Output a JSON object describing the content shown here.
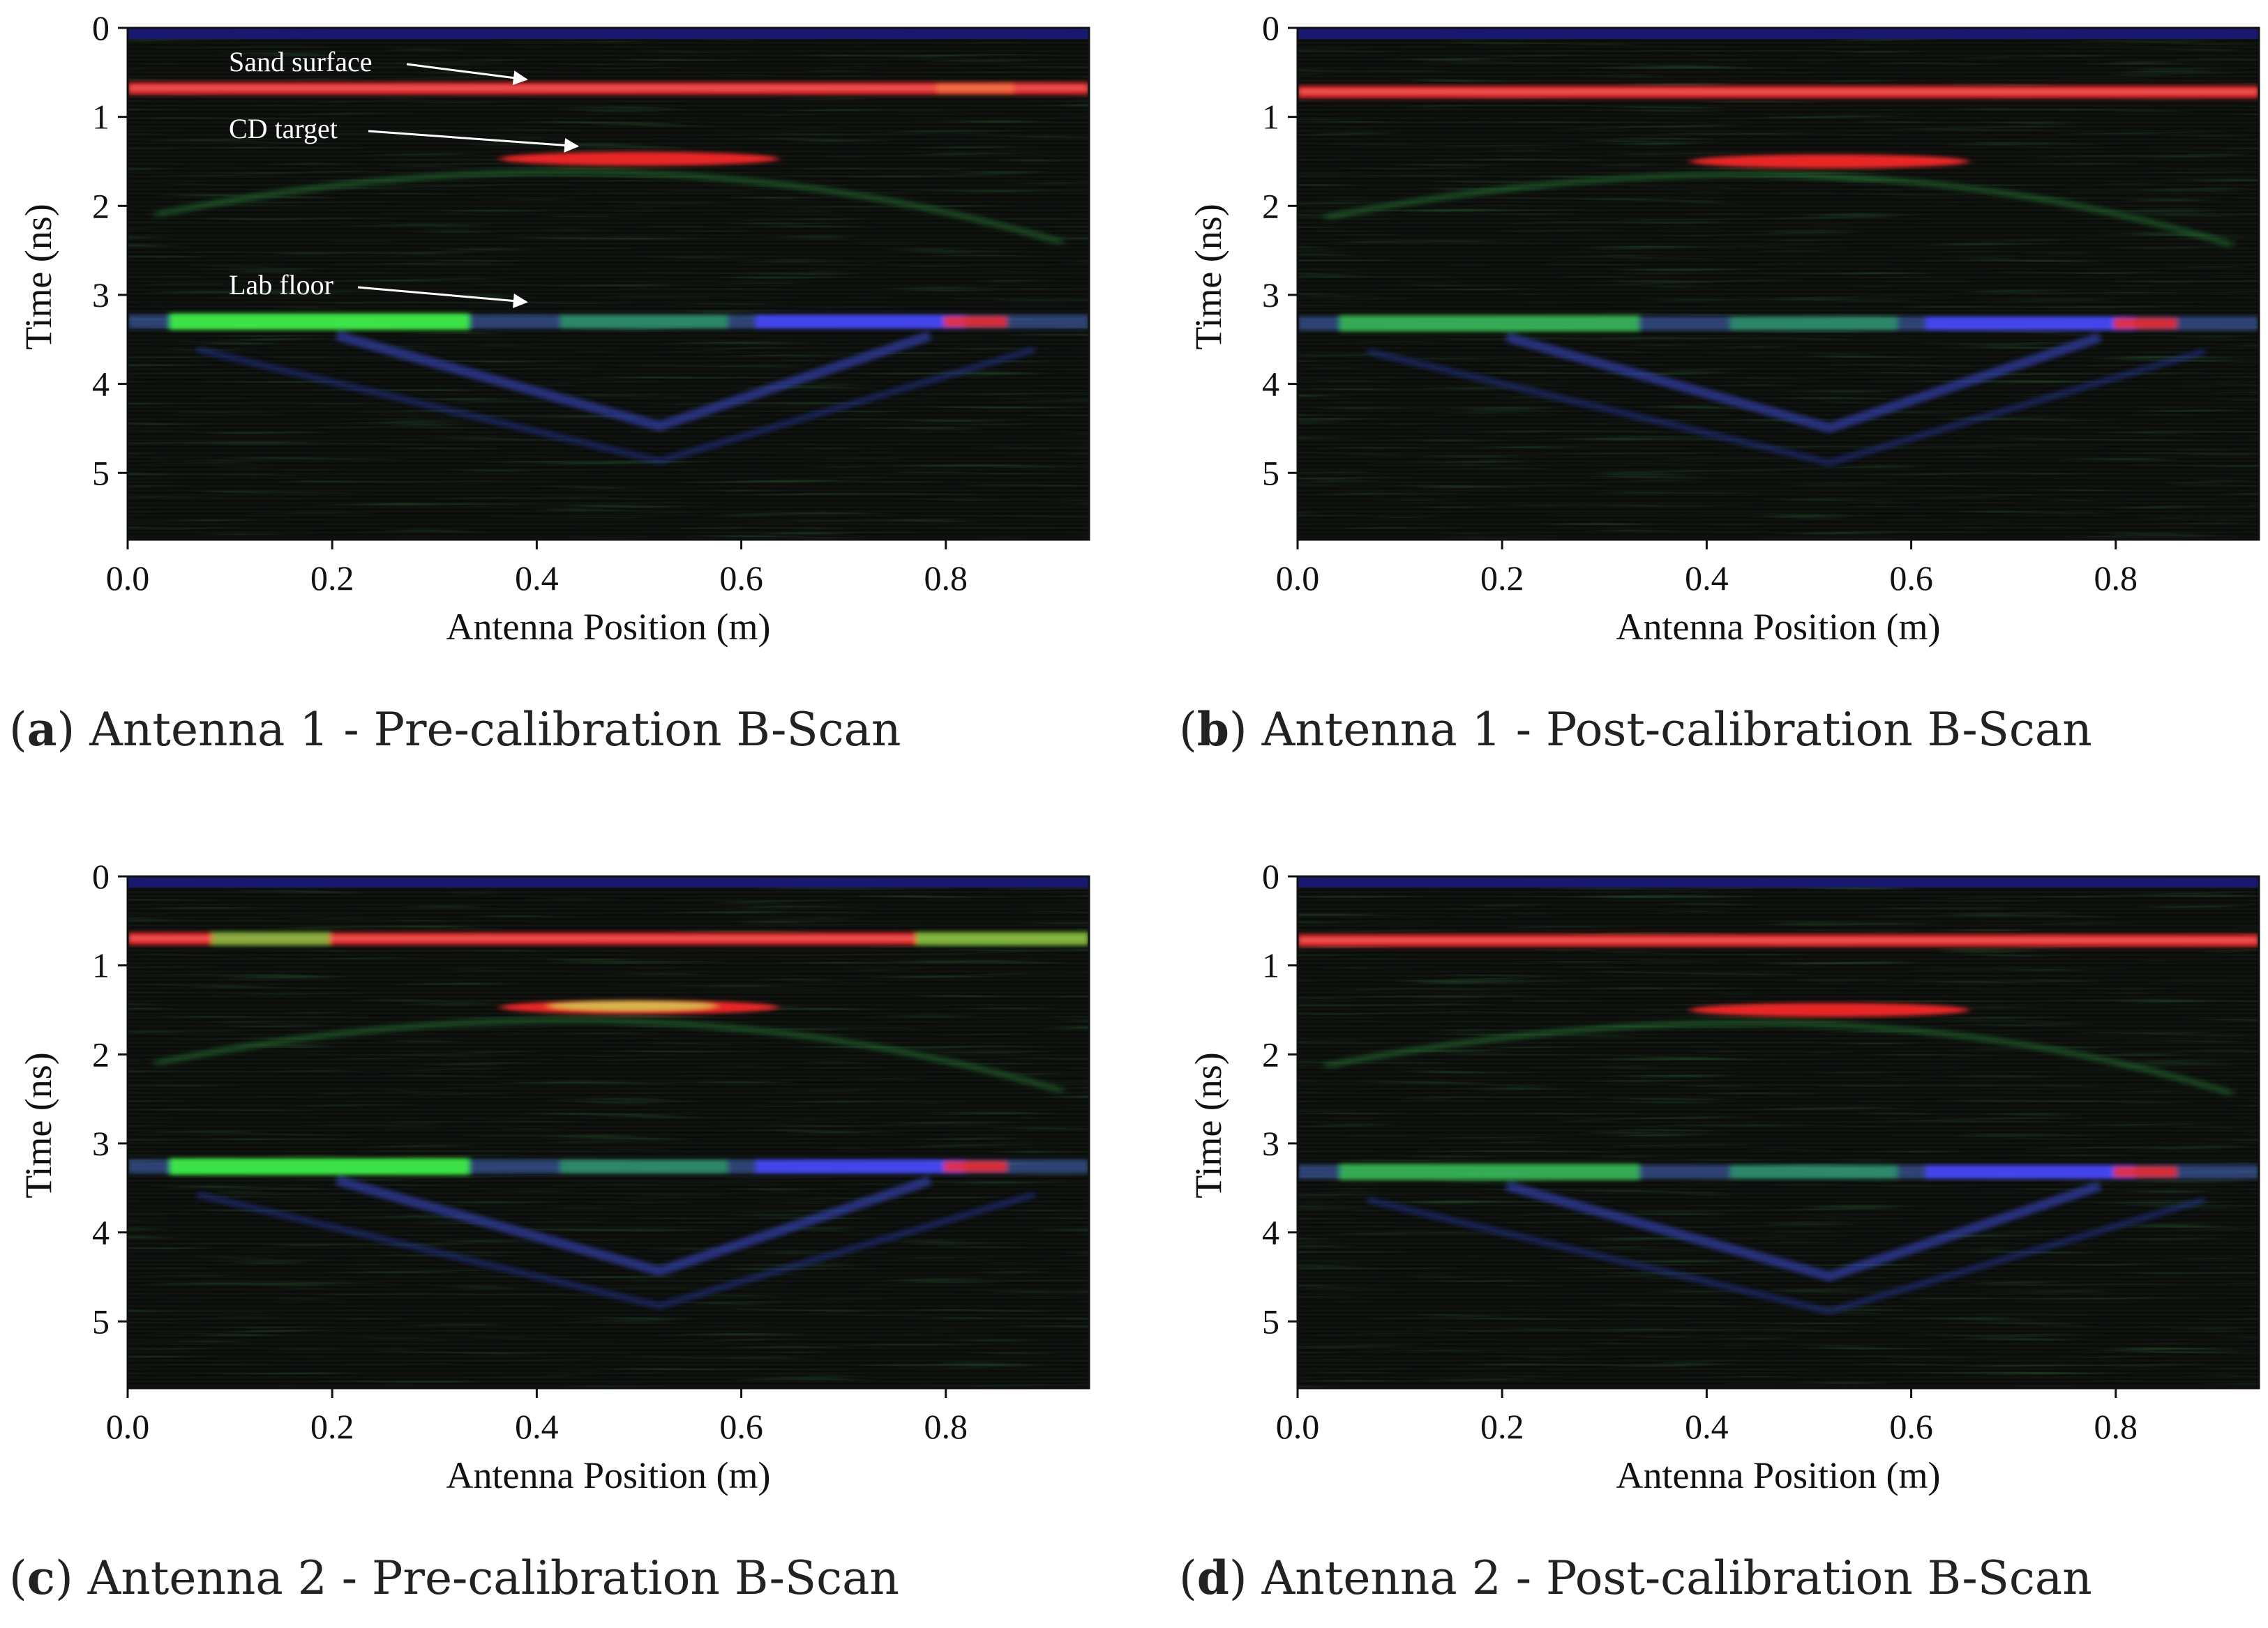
{
  "colors": {
    "background": "#0b0d0b",
    "surface_band_top": "#1a1a7a",
    "red": "#ff2a2a",
    "green": "#40ff40",
    "blue": "#4848ff"
  },
  "chart_data": [
    {
      "panel": "a",
      "type": "heatmap",
      "caption_letter": "a",
      "caption_text": "Antenna 1 - Pre-calibration B-Scan",
      "xlabel": "Antenna Position (m)",
      "ylabel": "Time (ns)",
      "xlim": [
        0.0,
        0.94
      ],
      "ylim": [
        5.75,
        0.0
      ],
      "xticks": [
        "0.0",
        "0.2",
        "0.4",
        "0.6",
        "0.8"
      ],
      "yticks": [
        "0",
        "1",
        "2",
        "3",
        "4",
        "5"
      ],
      "reflections": [
        {
          "name": "surface",
          "time_ns": 0.68,
          "channel": "red"
        },
        {
          "name": "target",
          "apex_position_m": 0.5,
          "apex_time_ns": 1.47,
          "channel": "red"
        },
        {
          "name": "floor",
          "time_ns": 3.3,
          "channel": "green-blue"
        }
      ],
      "annotations": [
        {
          "label": "Sand surface",
          "points_to": {
            "x": 0.39,
            "y": 0.58
          }
        },
        {
          "label": "CD target",
          "points_to": {
            "x": 0.44,
            "y": 1.33
          }
        },
        {
          "label": "Lab floor",
          "points_to": {
            "x": 0.39,
            "y": 3.08
          }
        }
      ]
    },
    {
      "panel": "b",
      "type": "heatmap",
      "caption_letter": "b",
      "caption_text": "Antenna 1 - Post-calibration B-Scan",
      "xlabel": "Antenna Position (m)",
      "ylabel": "Time (ns)",
      "xlim": [
        0.0,
        0.94
      ],
      "ylim": [
        5.75,
        0.0
      ],
      "xticks": [
        "0.0",
        "0.2",
        "0.4",
        "0.6",
        "0.8"
      ],
      "yticks": [
        "0",
        "1",
        "2",
        "3",
        "4",
        "5"
      ],
      "reflections": [
        {
          "name": "surface",
          "time_ns": 0.72,
          "channel": "red"
        },
        {
          "name": "target",
          "apex_position_m": 0.52,
          "apex_time_ns": 1.5,
          "channel": "red"
        },
        {
          "name": "floor",
          "time_ns": 3.32,
          "channel": "green-blue"
        }
      ],
      "annotations": []
    },
    {
      "panel": "c",
      "type": "heatmap",
      "caption_letter": "c",
      "caption_text": "Antenna 2 - Pre-calibration B-Scan",
      "xlabel": "Antenna Position (m)",
      "ylabel": "Time (ns)",
      "xlim": [
        0.0,
        0.94
      ],
      "ylim": [
        5.75,
        0.0
      ],
      "xticks": [
        "0.0",
        "0.2",
        "0.4",
        "0.6",
        "0.8"
      ],
      "yticks": [
        "0",
        "1",
        "2",
        "3",
        "4",
        "5"
      ],
      "reflections": [
        {
          "name": "surface",
          "time_ns": 0.7,
          "channel": "red-green"
        },
        {
          "name": "target",
          "apex_position_m": 0.5,
          "apex_time_ns": 1.47,
          "channel": "red-green"
        },
        {
          "name": "floor",
          "time_ns": 3.26,
          "channel": "green-blue"
        }
      ],
      "annotations": []
    },
    {
      "panel": "d",
      "type": "heatmap",
      "caption_letter": "d",
      "caption_text": "Antenna 2 - Post-calibration B-Scan",
      "xlabel": "Antenna Position (m)",
      "ylabel": "Time (ns)",
      "xlim": [
        0.0,
        0.94
      ],
      "ylim": [
        5.75,
        0.0
      ],
      "xticks": [
        "0.0",
        "0.2",
        "0.4",
        "0.6",
        "0.8"
      ],
      "yticks": [
        "0",
        "1",
        "2",
        "3",
        "4",
        "5"
      ],
      "reflections": [
        {
          "name": "surface",
          "time_ns": 0.72,
          "channel": "red"
        },
        {
          "name": "target",
          "apex_position_m": 0.52,
          "apex_time_ns": 1.5,
          "channel": "red"
        },
        {
          "name": "floor",
          "time_ns": 3.32,
          "channel": "green-blue"
        }
      ],
      "annotations": []
    }
  ]
}
